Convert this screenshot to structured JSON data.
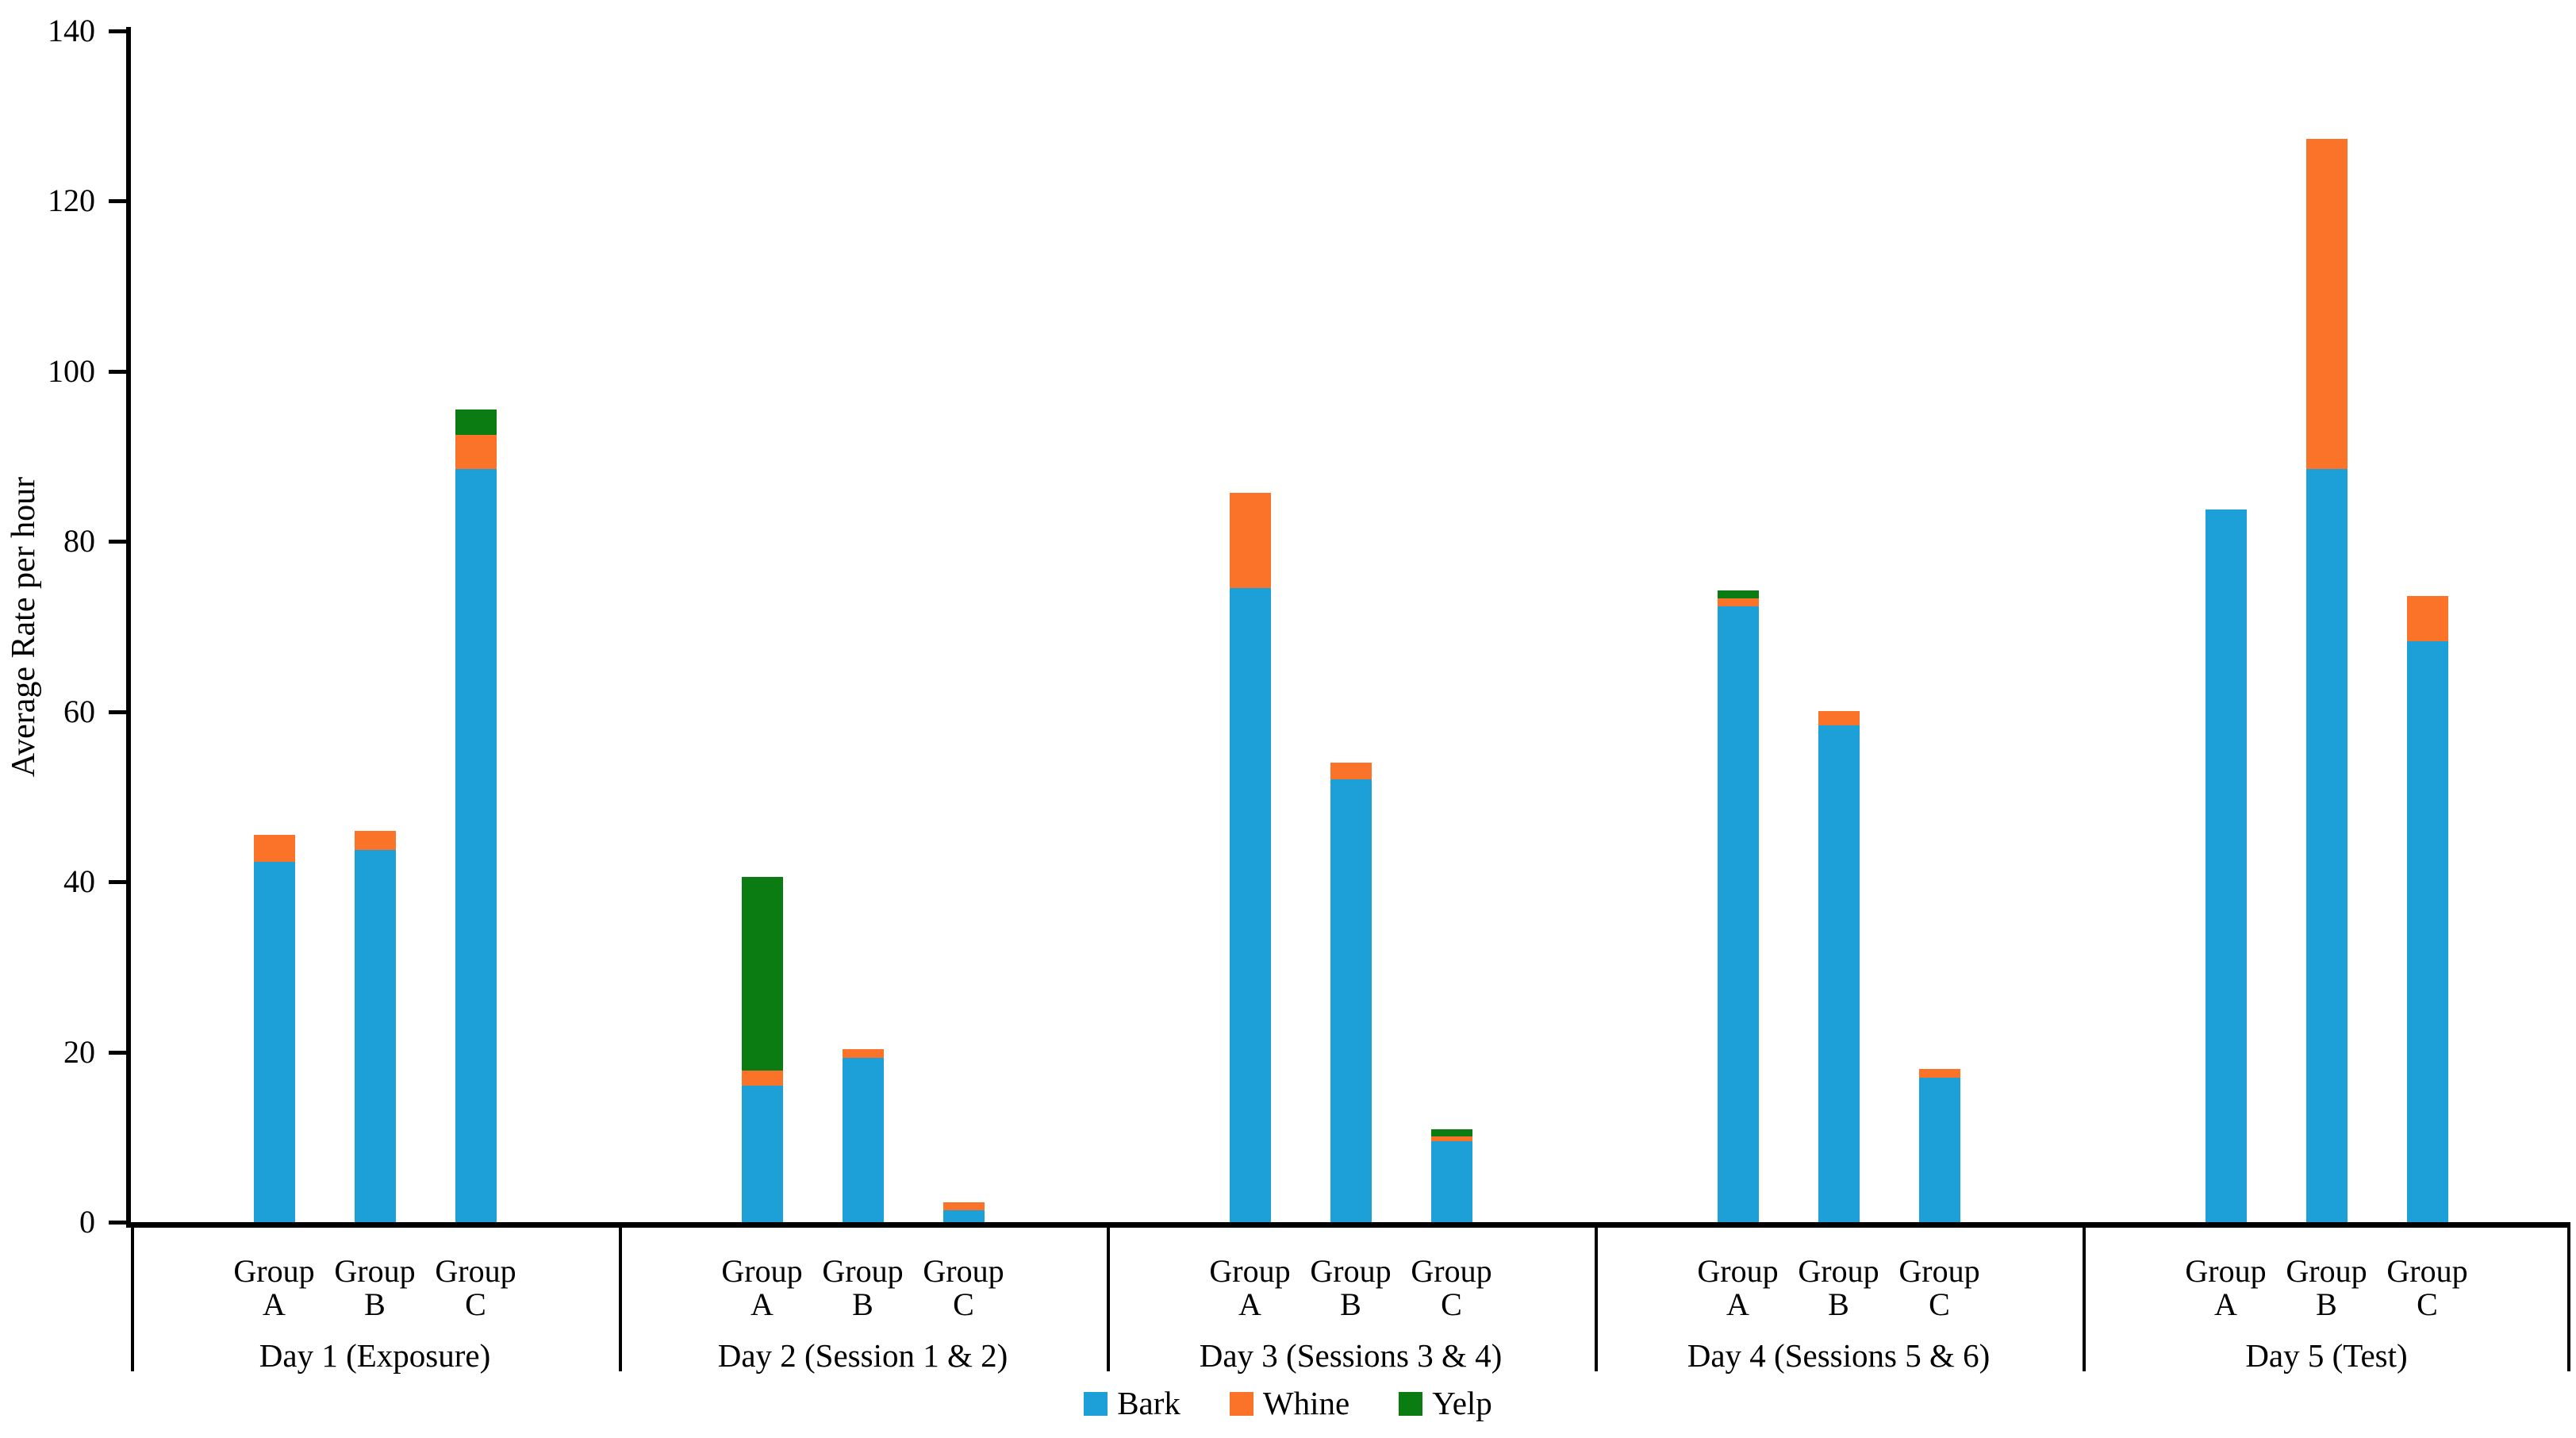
{
  "y_axis": {
    "title": "Average Rate per hour",
    "tick_labels": [
      "0",
      "20",
      "40",
      "60",
      "80",
      "100",
      "120",
      "140"
    ],
    "tick_values": [
      0,
      20,
      40,
      60,
      80,
      100,
      120,
      140
    ],
    "max": 140
  },
  "group_word": "Group",
  "legend": {
    "items": [
      {
        "label": "Bark",
        "color": "#1D9FD8"
      },
      {
        "label": "Whine",
        "color": "#FB7328"
      },
      {
        "label": "Yelp",
        "color": "#0B7C11"
      }
    ]
  },
  "chart_data": {
    "type": "bar",
    "stacked": true,
    "title": "",
    "xlabel": "",
    "ylabel": "Average Rate per hour",
    "ylim": [
      0,
      140
    ],
    "grid": false,
    "legend_position": "bottom-center",
    "series_names": [
      "Bark",
      "Whine",
      "Yelp"
    ],
    "colors": {
      "Bark": "#1D9FD8",
      "Whine": "#FB7328",
      "Yelp": "#0B7C11"
    },
    "days": [
      {
        "label": "Day 1 (Exposure)",
        "groups": [
          {
            "group": "A",
            "Bark": 42.3,
            "Whine": 3.2,
            "Yelp": 0
          },
          {
            "group": "B",
            "Bark": 43.7,
            "Whine": 2.3,
            "Yelp": 0
          },
          {
            "group": "C",
            "Bark": 88.5,
            "Whine": 4.0,
            "Yelp": 3.0
          }
        ]
      },
      {
        "label": "Day 2 (Session 1 & 2)",
        "groups": [
          {
            "group": "A",
            "Bark": 16.0,
            "Whine": 1.8,
            "Yelp": 22.8
          },
          {
            "group": "B",
            "Bark": 19.3,
            "Whine": 1.0,
            "Yelp": 0
          },
          {
            "group": "C",
            "Bark": 1.4,
            "Whine": 0.9,
            "Yelp": 0
          }
        ]
      },
      {
        "label": "Day 3 (Sessions 3 & 4)",
        "groups": [
          {
            "group": "A",
            "Bark": 74.5,
            "Whine": 11.2,
            "Yelp": 0
          },
          {
            "group": "B",
            "Bark": 52.0,
            "Whine": 2.0,
            "Yelp": 0
          },
          {
            "group": "C",
            "Bark": 9.5,
            "Whine": 0.6,
            "Yelp": 0.8
          }
        ]
      },
      {
        "label": "Day 4 (Sessions 5 & 6)",
        "groups": [
          {
            "group": "A",
            "Bark": 72.4,
            "Whine": 0.9,
            "Yelp": 0.9
          },
          {
            "group": "B",
            "Bark": 58.4,
            "Whine": 1.7,
            "Yelp": 0
          },
          {
            "group": "C",
            "Bark": 17.0,
            "Whine": 1.0,
            "Yelp": 0
          }
        ]
      },
      {
        "label": "Day 5 (Test)",
        "groups": [
          {
            "group": "A",
            "Bark": 83.8,
            "Whine": 0,
            "Yelp": 0
          },
          {
            "group": "B",
            "Bark": 88.5,
            "Whine": 38.8,
            "Yelp": 0
          },
          {
            "group": "C",
            "Bark": 68.3,
            "Whine": 5.3,
            "Yelp": 0
          }
        ]
      }
    ]
  }
}
